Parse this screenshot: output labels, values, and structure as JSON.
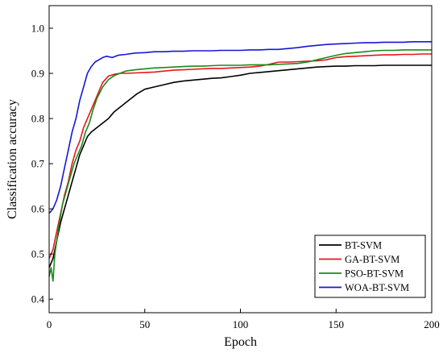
{
  "chart_data": {
    "type": "line",
    "title": "",
    "xlabel": "Epoch",
    "ylabel": "Classification accuracy",
    "xlim": [
      0,
      200
    ],
    "ylim": [
      0.37,
      1.05
    ],
    "xticks": [
      0,
      50,
      100,
      150,
      200
    ],
    "yticks": [
      0.4,
      0.5,
      0.6,
      0.7,
      0.8,
      0.9,
      1.0
    ],
    "ytick_labels": [
      "0.4",
      "0.5",
      "0.6",
      "0.7",
      "0.8",
      "0.9",
      "1.0"
    ],
    "grid": false,
    "legend_position": "bottom-right",
    "series": [
      {
        "name": "BT-SVM",
        "color": "#000000",
        "x": [
          0,
          2,
          4,
          6,
          8,
          10,
          12,
          14,
          16,
          18,
          20,
          22,
          25,
          28,
          31,
          34,
          37,
          40,
          43,
          46,
          50,
          55,
          60,
          65,
          70,
          75,
          80,
          85,
          90,
          95,
          100,
          105,
          110,
          115,
          120,
          125,
          130,
          135,
          140,
          145,
          150,
          155,
          160,
          165,
          170,
          175,
          180,
          185,
          190,
          195,
          200
        ],
        "y": [
          0.47,
          0.49,
          0.53,
          0.57,
          0.6,
          0.63,
          0.66,
          0.69,
          0.72,
          0.74,
          0.76,
          0.77,
          0.78,
          0.79,
          0.8,
          0.815,
          0.825,
          0.835,
          0.845,
          0.855,
          0.865,
          0.87,
          0.875,
          0.88,
          0.883,
          0.885,
          0.887,
          0.889,
          0.89,
          0.893,
          0.896,
          0.9,
          0.902,
          0.904,
          0.906,
          0.908,
          0.91,
          0.912,
          0.914,
          0.915,
          0.916,
          0.916,
          0.917,
          0.917,
          0.917,
          0.918,
          0.918,
          0.918,
          0.918,
          0.918,
          0.918
        ]
      },
      {
        "name": "GA-BT-SVM",
        "color": "#e8161b",
        "x": [
          0,
          2,
          4,
          6,
          8,
          10,
          12,
          14,
          16,
          18,
          20,
          22,
          25,
          28,
          31,
          34,
          37,
          40,
          45,
          50,
          55,
          60,
          65,
          70,
          75,
          80,
          85,
          90,
          95,
          100,
          105,
          110,
          115,
          120,
          125,
          130,
          135,
          140,
          145,
          150,
          155,
          160,
          165,
          170,
          175,
          180,
          185,
          190,
          195,
          200
        ],
        "y": [
          0.49,
          0.51,
          0.55,
          0.59,
          0.63,
          0.66,
          0.7,
          0.73,
          0.75,
          0.78,
          0.8,
          0.82,
          0.85,
          0.88,
          0.894,
          0.898,
          0.9,
          0.9,
          0.901,
          0.902,
          0.903,
          0.905,
          0.907,
          0.908,
          0.909,
          0.91,
          0.911,
          0.911,
          0.912,
          0.913,
          0.914,
          0.916,
          0.92,
          0.925,
          0.925,
          0.926,
          0.927,
          0.928,
          0.93,
          0.935,
          0.937,
          0.938,
          0.939,
          0.94,
          0.941,
          0.941,
          0.942,
          0.942,
          0.943,
          0.943
        ]
      },
      {
        "name": "PSO-BT-SVM",
        "color": "#1a8a1a",
        "x": [
          0,
          1,
          2,
          3,
          5,
          7,
          9,
          11,
          13,
          15,
          17,
          19,
          21,
          23,
          25,
          28,
          31,
          34,
          37,
          40,
          45,
          50,
          55,
          60,
          65,
          70,
          75,
          80,
          85,
          90,
          95,
          100,
          105,
          110,
          115,
          120,
          125,
          130,
          135,
          140,
          145,
          150,
          155,
          160,
          165,
          170,
          175,
          180,
          185,
          190,
          195,
          200
        ],
        "y": [
          0.45,
          0.47,
          0.44,
          0.5,
          0.56,
          0.61,
          0.64,
          0.67,
          0.7,
          0.72,
          0.74,
          0.77,
          0.79,
          0.82,
          0.845,
          0.87,
          0.886,
          0.895,
          0.9,
          0.905,
          0.908,
          0.91,
          0.912,
          0.913,
          0.914,
          0.915,
          0.916,
          0.916,
          0.917,
          0.918,
          0.918,
          0.918,
          0.919,
          0.919,
          0.919,
          0.92,
          0.921,
          0.922,
          0.925,
          0.93,
          0.935,
          0.94,
          0.944,
          0.946,
          0.948,
          0.95,
          0.951,
          0.951,
          0.952,
          0.952,
          0.952,
          0.952
        ]
      },
      {
        "name": "WOA-BT-SVM",
        "color": "#1717d4",
        "x": [
          0,
          2,
          4,
          6,
          8,
          10,
          12,
          14,
          16,
          18,
          20,
          22,
          24,
          26,
          28,
          30,
          33,
          36,
          40,
          45,
          50,
          55,
          60,
          65,
          70,
          75,
          80,
          85,
          90,
          95,
          100,
          105,
          110,
          115,
          120,
          125,
          130,
          135,
          140,
          145,
          150,
          155,
          160,
          165,
          170,
          175,
          180,
          185,
          190,
          195,
          200
        ],
        "y": [
          0.59,
          0.6,
          0.62,
          0.65,
          0.69,
          0.73,
          0.77,
          0.8,
          0.84,
          0.87,
          0.9,
          0.915,
          0.925,
          0.93,
          0.935,
          0.938,
          0.935,
          0.94,
          0.942,
          0.945,
          0.946,
          0.948,
          0.948,
          0.949,
          0.949,
          0.95,
          0.95,
          0.95,
          0.951,
          0.951,
          0.951,
          0.952,
          0.952,
          0.953,
          0.953,
          0.955,
          0.957,
          0.96,
          0.962,
          0.964,
          0.965,
          0.966,
          0.967,
          0.968,
          0.968,
          0.969,
          0.969,
          0.969,
          0.97,
          0.97,
          0.97
        ]
      }
    ]
  }
}
